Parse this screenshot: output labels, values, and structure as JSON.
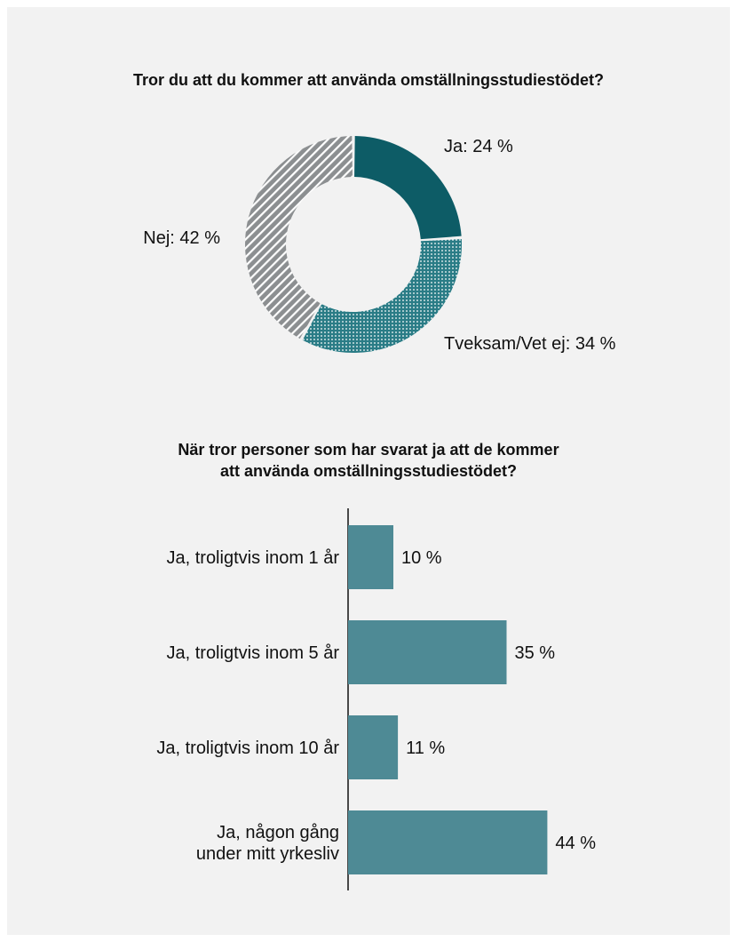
{
  "chart_data": [
    {
      "type": "pie",
      "title": "Tror du att du kommer att använda omställningsstudiestödet?",
      "categories": [
        "Ja",
        "Tveksam/Vet ej",
        "Nej"
      ],
      "values": [
        24,
        34,
        42
      ],
      "labels": [
        "Ja: 24 %",
        "Tveksam/Vet ej: 34 %",
        "Nej: 42 %"
      ],
      "colors": [
        "#0d5c66",
        "#2a7c86",
        "#8c8f91"
      ],
      "patterns": [
        "solid",
        "dotted",
        "diagonal-stripes"
      ],
      "donut": true
    },
    {
      "type": "bar",
      "orientation": "horizontal",
      "title": "När tror personer som har svarat ja att de kommer\natt använda omställningsstudiestödet?",
      "categories": [
        "Ja, troligtvis inom 1 år",
        "Ja, troligtvis inom 5 år",
        "Ja, troligtvis inom 10 år",
        "Ja, någon gång\nunder mitt yrkesliv"
      ],
      "values": [
        10,
        35,
        11,
        44
      ],
      "value_labels": [
        "10 %",
        "35 %",
        "11 %",
        "44 %"
      ],
      "color": "#4e8a95",
      "xlim": [
        0,
        50
      ]
    }
  ]
}
